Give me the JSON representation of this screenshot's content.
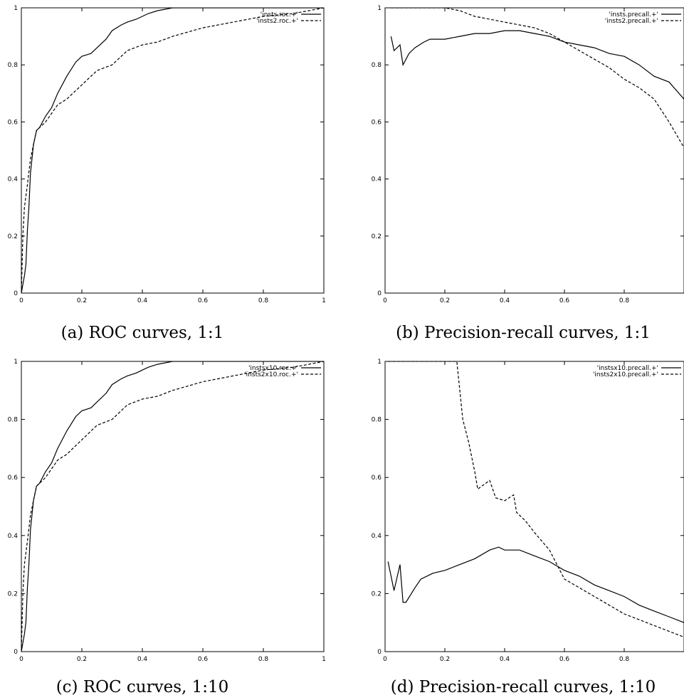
{
  "chart_data": [
    {
      "type": "line",
      "caption": "(a) ROC curves, 1:1",
      "xlim": [
        0,
        1
      ],
      "ylim": [
        0,
        1
      ],
      "xticks": [
        "0",
        "0.2",
        "0.4",
        "0.6",
        "0.8",
        "1"
      ],
      "yticks": [
        "0",
        "0.2",
        "0.4",
        "0.6",
        "0.8",
        "1"
      ],
      "legend_position": "top-right",
      "series": [
        {
          "name": "'insts.roc.+'",
          "style": "solid",
          "x": [
            0,
            0.005,
            0.01,
            0.015,
            0.02,
            0.025,
            0.03,
            0.04,
            0.05,
            0.06,
            0.08,
            0.1,
            0.12,
            0.15,
            0.18,
            0.2,
            0.23,
            0.25,
            0.28,
            0.3,
            0.33,
            0.35,
            0.38,
            0.4,
            0.42,
            0.45,
            0.5,
            0.55,
            0.6,
            0.7,
            0.8,
            0.9,
            1
          ],
          "y": [
            0,
            0.03,
            0.06,
            0.1,
            0.22,
            0.3,
            0.42,
            0.52,
            0.57,
            0.58,
            0.62,
            0.65,
            0.7,
            0.76,
            0.81,
            0.83,
            0.84,
            0.86,
            0.89,
            0.92,
            0.94,
            0.95,
            0.96,
            0.97,
            0.98,
            0.99,
            1,
            1,
            1,
            1,
            1,
            1,
            1
          ]
        },
        {
          "name": "'insts2.roc.+'",
          "style": "dashed",
          "x": [
            0,
            0.005,
            0.01,
            0.02,
            0.03,
            0.04,
            0.05,
            0.06,
            0.08,
            0.1,
            0.12,
            0.15,
            0.2,
            0.25,
            0.3,
            0.35,
            0.4,
            0.45,
            0.5,
            0.6,
            0.7,
            0.8,
            0.9,
            0.95,
            1
          ],
          "y": [
            0,
            0.2,
            0.3,
            0.38,
            0.47,
            0.52,
            0.57,
            0.58,
            0.6,
            0.63,
            0.66,
            0.68,
            0.73,
            0.78,
            0.8,
            0.85,
            0.87,
            0.88,
            0.9,
            0.93,
            0.95,
            0.97,
            0.98,
            0.99,
            1
          ]
        }
      ]
    },
    {
      "type": "line",
      "caption": "(b) Precision-recall curves, 1:1",
      "xlim": [
        0,
        1
      ],
      "ylim": [
        0,
        1
      ],
      "xticks": [
        "0",
        "0.2",
        "0.4",
        "0.6",
        "0.8"
      ],
      "yticks": [
        "0",
        "0.2",
        "0.4",
        "0.6",
        "0.8",
        "1"
      ],
      "legend_position": "top-right",
      "series": [
        {
          "name": "'insts.precall.+'",
          "style": "solid",
          "x": [
            0.02,
            0.03,
            0.05,
            0.06,
            0.08,
            0.1,
            0.13,
            0.15,
            0.2,
            0.25,
            0.3,
            0.35,
            0.4,
            0.45,
            0.5,
            0.55,
            0.6,
            0.65,
            0.7,
            0.75,
            0.8,
            0.85,
            0.9,
            0.95,
            1
          ],
          "y": [
            0.9,
            0.85,
            0.87,
            0.8,
            0.84,
            0.86,
            0.88,
            0.89,
            0.89,
            0.9,
            0.91,
            0.91,
            0.92,
            0.92,
            0.91,
            0.9,
            0.88,
            0.87,
            0.86,
            0.84,
            0.83,
            0.8,
            0.76,
            0.74,
            0.68
          ]
        },
        {
          "name": "'insts2.precall.+'",
          "style": "dashed",
          "x": [
            0.02,
            0.1,
            0.2,
            0.25,
            0.3,
            0.35,
            0.4,
            0.45,
            0.5,
            0.55,
            0.6,
            0.65,
            0.7,
            0.75,
            0.8,
            0.85,
            0.9,
            0.95,
            1
          ],
          "y": [
            1,
            1,
            1,
            0.99,
            0.97,
            0.96,
            0.95,
            0.94,
            0.93,
            0.91,
            0.88,
            0.85,
            0.82,
            0.79,
            0.75,
            0.72,
            0.68,
            0.6,
            0.51
          ]
        }
      ]
    },
    {
      "type": "line",
      "caption": "(c) ROC curves, 1:10",
      "xlim": [
        0,
        1
      ],
      "ylim": [
        0,
        1
      ],
      "xticks": [
        "0",
        "0.2",
        "0.4",
        "0.6",
        "0.8",
        "1"
      ],
      "yticks": [
        "0",
        "0.2",
        "0.4",
        "0.6",
        "0.8",
        "1"
      ],
      "legend_position": "top-right",
      "series": [
        {
          "name": "'instsx10.roc.+'",
          "style": "solid",
          "x": [
            0,
            0.005,
            0.01,
            0.015,
            0.02,
            0.025,
            0.03,
            0.04,
            0.05,
            0.06,
            0.08,
            0.1,
            0.12,
            0.15,
            0.18,
            0.2,
            0.23,
            0.25,
            0.28,
            0.3,
            0.33,
            0.35,
            0.38,
            0.4,
            0.42,
            0.45,
            0.5,
            0.55,
            0.6,
            0.7,
            0.8,
            0.9,
            1
          ],
          "y": [
            0,
            0.03,
            0.06,
            0.1,
            0.22,
            0.3,
            0.42,
            0.52,
            0.57,
            0.58,
            0.62,
            0.65,
            0.7,
            0.76,
            0.81,
            0.83,
            0.84,
            0.86,
            0.89,
            0.92,
            0.94,
            0.95,
            0.96,
            0.97,
            0.98,
            0.99,
            1,
            1,
            1,
            1,
            1,
            1,
            1
          ]
        },
        {
          "name": "'insts2x10.roc.+'",
          "style": "dashed",
          "x": [
            0,
            0.005,
            0.01,
            0.02,
            0.03,
            0.04,
            0.05,
            0.06,
            0.08,
            0.1,
            0.12,
            0.15,
            0.2,
            0.25,
            0.3,
            0.35,
            0.4,
            0.45,
            0.5,
            0.6,
            0.7,
            0.8,
            0.9,
            0.95,
            1
          ],
          "y": [
            0,
            0.2,
            0.3,
            0.38,
            0.47,
            0.52,
            0.57,
            0.58,
            0.6,
            0.63,
            0.66,
            0.68,
            0.73,
            0.78,
            0.8,
            0.85,
            0.87,
            0.88,
            0.9,
            0.93,
            0.95,
            0.97,
            0.98,
            0.99,
            1
          ]
        }
      ]
    },
    {
      "type": "line",
      "caption": "(d) Precision-recall curves, 1:10",
      "xlim": [
        0,
        1
      ],
      "ylim": [
        0,
        1
      ],
      "xticks": [
        "0",
        "0.2",
        "0.4",
        "0.6",
        "0.8"
      ],
      "yticks": [
        "0",
        "0.2",
        "0.4",
        "0.6",
        "0.8",
        "1"
      ],
      "legend_position": "top-right",
      "series": [
        {
          "name": "'instsx10.precall.+'",
          "style": "solid",
          "x": [
            0.01,
            0.03,
            0.05,
            0.06,
            0.07,
            0.1,
            0.12,
            0.14,
            0.16,
            0.2,
            0.25,
            0.3,
            0.35,
            0.38,
            0.4,
            0.45,
            0.5,
            0.55,
            0.6,
            0.65,
            0.7,
            0.75,
            0.8,
            0.85,
            0.9,
            0.95,
            1
          ],
          "y": [
            0.31,
            0.21,
            0.3,
            0.17,
            0.17,
            0.22,
            0.25,
            0.26,
            0.27,
            0.28,
            0.3,
            0.32,
            0.35,
            0.36,
            0.35,
            0.35,
            0.33,
            0.31,
            0.28,
            0.26,
            0.23,
            0.21,
            0.19,
            0.16,
            0.14,
            0.12,
            0.1
          ]
        },
        {
          "name": "'insts2x10.precall.+'",
          "style": "dashed",
          "x": [
            0.01,
            0.1,
            0.2,
            0.24,
            0.25,
            0.26,
            0.28,
            0.3,
            0.31,
            0.35,
            0.37,
            0.4,
            0.43,
            0.44,
            0.47,
            0.5,
            0.55,
            0.58,
            0.6,
            0.65,
            0.7,
            0.75,
            0.8,
            0.85,
            0.9,
            0.95,
            1
          ],
          "y": [
            1,
            1,
            1,
            1,
            0.9,
            0.8,
            0.72,
            0.62,
            0.56,
            0.59,
            0.53,
            0.52,
            0.54,
            0.48,
            0.45,
            0.41,
            0.35,
            0.29,
            0.25,
            0.22,
            0.19,
            0.16,
            0.13,
            0.11,
            0.09,
            0.07,
            0.05
          ]
        }
      ]
    }
  ]
}
